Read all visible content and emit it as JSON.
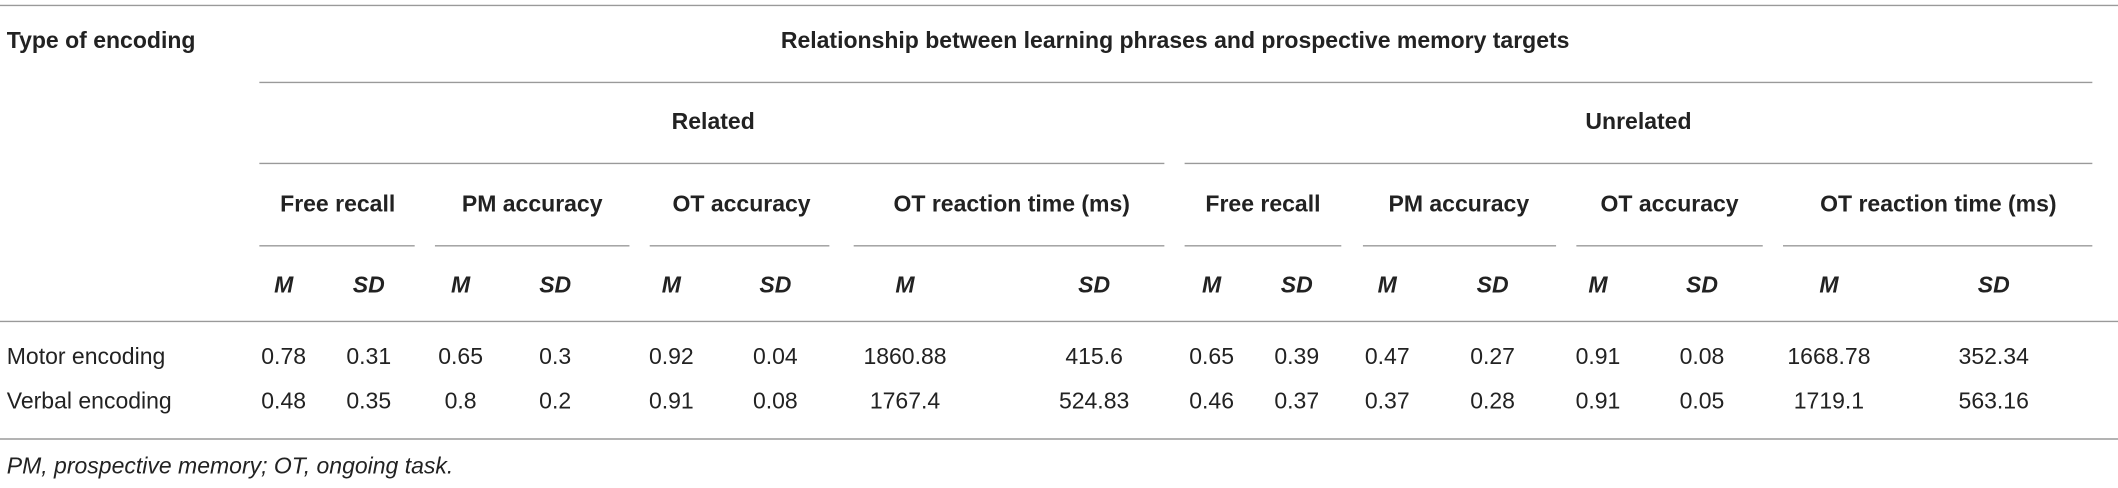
{
  "table": {
    "header": {
      "stub": "Type of encoding",
      "span": "Relationship between learning phrases and prospective memory targets",
      "groups": [
        {
          "label": "Related",
          "measures": [
            "Free recall",
            "PM accuracy",
            "OT accuracy",
            "OT reaction time (ms)"
          ]
        },
        {
          "label": "Unrelated",
          "measures": [
            "Free recall",
            "PM accuracy",
            "OT accuracy",
            "OT reaction time (ms)"
          ]
        }
      ],
      "stats": [
        "M",
        "SD"
      ]
    },
    "rows": [
      [
        "Motor encoding",
        "0.78",
        "0.31",
        "0.65",
        "0.3",
        "0.92",
        "0.04",
        "1860.88",
        "415.6",
        "0.65",
        "0.39",
        "0.47",
        "0.27",
        "0.91",
        "0.08",
        "1668.78",
        "352.34"
      ],
      [
        "Verbal encoding",
        "0.48",
        "0.35",
        "0.8",
        "0.2",
        "0.91",
        "0.08",
        "1767.4",
        "524.83",
        "0.46",
        "0.37",
        "0.37",
        "0.28",
        "0.91",
        "0.05",
        "1719.1",
        "563.16"
      ]
    ],
    "footnote": "PM, prospective memory; OT, ongoing task."
  }
}
